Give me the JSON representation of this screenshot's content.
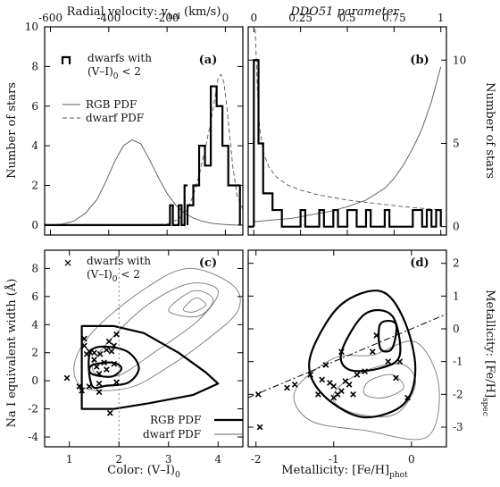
{
  "chart_data": [
    {
      "panel": "(a)",
      "type": "line",
      "xlabel_top": "Radial velocity: v",
      "xlabel_top_sub": "hel",
      "xlabel_top_unit": " (km/s)",
      "ylabel": "Number of stars",
      "xlim": [
        -620,
        60
      ],
      "ylim": [
        -0.5,
        10
      ],
      "xticks": [
        -600,
        -400,
        -200,
        0
      ],
      "yticks": [
        0,
        2,
        4,
        6,
        8,
        10
      ],
      "legend": {
        "hist_label_1": "dwarfs with",
        "hist_label_2": "(V–I)",
        "hist_label_2_sub": "0",
        "hist_label_2_tail": " < 2",
        "rgb_label": "RGB PDF",
        "dwarf_label": "dwarf PDF"
      },
      "histogram": {
        "edges": [
          -130,
          -110,
          -90,
          -70,
          -50,
          -30,
          -10,
          10,
          30,
          50
        ],
        "counts": [
          1,
          2,
          4,
          3,
          7,
          6,
          4,
          2,
          2
        ]
      },
      "histogram_tail": {
        "x": [
          -200,
          -190,
          -190,
          -180,
          -180,
          -160,
          -160,
          -150,
          -150,
          -140,
          -140,
          -130
        ],
        "y": [
          0,
          0,
          1,
          1,
          0,
          0,
          1,
          1,
          0,
          0,
          2,
          2
        ]
      },
      "rgb_pdf": {
        "x": [
          -620,
          -560,
          -520,
          -480,
          -440,
          -410,
          -380,
          -350,
          -320,
          -290,
          -260,
          -230,
          -200,
          -170,
          -140,
          -110,
          -80,
          -50,
          -20,
          10,
          40,
          60
        ],
        "y": [
          0,
          0.05,
          0.2,
          0.6,
          1.3,
          2.2,
          3.2,
          4.0,
          4.3,
          4.1,
          3.3,
          2.4,
          1.6,
          1.0,
          0.6,
          0.35,
          0.2,
          0.1,
          0.05,
          0.02,
          0,
          0
        ]
      },
      "dwarf_pdf": {
        "x": [
          -620,
          -300,
          -200,
          -160,
          -130,
          -110,
          -90,
          -70,
          -50,
          -35,
          -25,
          -15,
          -5,
          5,
          15,
          25,
          40,
          60
        ],
        "y": [
          0,
          0,
          0.05,
          0.3,
          0.8,
          1.5,
          2.5,
          3.8,
          5.2,
          6.5,
          7.4,
          7.6,
          7.2,
          6.0,
          4.5,
          3.0,
          1.5,
          0.8
        ]
      }
    },
    {
      "panel": "(b)",
      "type": "line",
      "xlabel_top": "DDO51 parameter",
      "ylabel": "Number of stars",
      "xlim": [
        -0.03,
        1.03
      ],
      "ylim": [
        -0.5,
        12
      ],
      "xticks": [
        0,
        0.25,
        0.5,
        0.75,
        1
      ],
      "xticklabels": [
        "0",
        "0.25",
        "0.5",
        "0.75",
        "1"
      ],
      "yticks": [
        0,
        5,
        10
      ],
      "histogram": {
        "edges": [
          0,
          0.025,
          0.05,
          0.075,
          0.1,
          0.125,
          0.15,
          0.175,
          0.2,
          0.225,
          0.25,
          0.275,
          0.3,
          0.325,
          0.35,
          0.375,
          0.4,
          0.425,
          0.45,
          0.475,
          0.5,
          0.525,
          0.55,
          0.575,
          0.6,
          0.625,
          0.65,
          0.675,
          0.7,
          0.725,
          0.75,
          0.775,
          0.8,
          0.825,
          0.85,
          0.875,
          0.9,
          0.925,
          0.95,
          0.975,
          1.0
        ],
        "counts": [
          10,
          5,
          2,
          2,
          1,
          1,
          0,
          0,
          0,
          0,
          1,
          0,
          0,
          0,
          1,
          0,
          0,
          1,
          0,
          0,
          1,
          1,
          0,
          0,
          1,
          0,
          0,
          0,
          1,
          0,
          0,
          0,
          0,
          0,
          1,
          1,
          0,
          1,
          0,
          1
        ]
      },
      "rgb_pdf": {
        "x": [
          0,
          0.1,
          0.2,
          0.3,
          0.4,
          0.5,
          0.6,
          0.7,
          0.75,
          0.8,
          0.85,
          0.9,
          0.95,
          1.0
        ],
        "y": [
          0.3,
          0.4,
          0.5,
          0.7,
          0.9,
          1.2,
          1.6,
          2.3,
          2.9,
          3.7,
          4.7,
          5.9,
          7.5,
          9.6
        ]
      },
      "dwarf_pdf": {
        "x": [
          0,
          0.01,
          0.02,
          0.03,
          0.05,
          0.08,
          0.12,
          0.18,
          0.25,
          0.35,
          0.5,
          0.65,
          0.8,
          1.0
        ],
        "y": [
          14,
          11,
          8,
          6,
          4.5,
          3.6,
          3.0,
          2.5,
          2.2,
          1.9,
          1.6,
          1.4,
          1.2,
          1.0
        ]
      }
    },
    {
      "panel": "(c)",
      "type": "scatter",
      "xlabel": "Color: (V–I)",
      "xlabel_sub": "0",
      "ylabel": "Na I equivalent width (Å)",
      "xlim": [
        0.5,
        4.5
      ],
      "ylim": [
        -4.7,
        9.3
      ],
      "xticks": [
        1,
        2,
        3,
        4
      ],
      "yticks": [
        -4,
        -2,
        0,
        2,
        4,
        6,
        8
      ],
      "legend": {
        "marker_label_1": "dwarfs with",
        "marker_label_2": "(V–I)",
        "marker_label_2_sub": "0",
        "marker_label_2_tail": " < 2",
        "rgb_label": "RGB PDF",
        "dwarf_label": "dwarf PDF"
      },
      "cut_x": 2,
      "points": [
        [
          0.95,
          0.2
        ],
        [
          1.2,
          -0.4
        ],
        [
          1.3,
          3.0
        ],
        [
          1.3,
          2.5
        ],
        [
          1.35,
          1.9
        ],
        [
          1.4,
          2.1
        ],
        [
          1.5,
          2.0
        ],
        [
          1.5,
          1.5
        ],
        [
          1.55,
          1.0
        ],
        [
          1.6,
          0.5
        ],
        [
          1.6,
          -0.2
        ],
        [
          1.62,
          1.9
        ],
        [
          1.7,
          1.3
        ],
        [
          1.75,
          0.8
        ],
        [
          1.75,
          2.2
        ],
        [
          1.8,
          2.8
        ],
        [
          1.82,
          -2.3
        ],
        [
          1.85,
          2.1
        ],
        [
          1.9,
          2.5
        ],
        [
          1.9,
          1.2
        ],
        [
          1.95,
          -0.1
        ],
        [
          1.95,
          3.3
        ],
        [
          1.4,
          -0.4
        ],
        [
          1.25,
          -0.7
        ],
        [
          1.6,
          -0.8
        ]
      ],
      "rgb_contour_outer": [
        [
          1.25,
          3.9
        ],
        [
          1.9,
          3.9
        ],
        [
          2.5,
          3.4
        ],
        [
          3.2,
          2.0
        ],
        [
          3.75,
          0.6
        ],
        [
          4.0,
          -0.2
        ],
        [
          3.5,
          -1.0
        ],
        [
          2.6,
          -1.6
        ],
        [
          1.9,
          -2.0
        ],
        [
          1.25,
          -2.0
        ]
      ],
      "rgb_contour_mid": [
        [
          1.45,
          2.2
        ],
        [
          2.1,
          2.2
        ],
        [
          2.4,
          1.0
        ],
        [
          2.2,
          -0.1
        ],
        [
          1.75,
          -0.35
        ],
        [
          1.45,
          -0.3
        ]
      ],
      "rgb_contour_inner": [
        [
          1.45,
          1.1
        ],
        [
          1.85,
          1.3
        ],
        [
          2.05,
          0.9
        ],
        [
          1.85,
          0.3
        ],
        [
          1.45,
          0.5
        ]
      ],
      "dwarf_contour_outer": [
        [
          1.1,
          1.2
        ],
        [
          1.5,
          3.6
        ],
        [
          2.5,
          6.5
        ],
        [
          3.4,
          8.0
        ],
        [
          4.3,
          6.8
        ],
        [
          4.4,
          5.0
        ],
        [
          3.8,
          3.0
        ],
        [
          3.0,
          1.0
        ],
        [
          2.2,
          -0.5
        ],
        [
          1.3,
          -0.5
        ]
      ],
      "dwarf_contour_mid": [
        [
          1.6,
          2.0
        ],
        [
          2.5,
          5.2
        ],
        [
          3.4,
          6.9
        ],
        [
          4.0,
          6.4
        ],
        [
          3.6,
          4.3
        ],
        [
          2.7,
          2.0
        ],
        [
          2.0,
          0.4
        ],
        [
          1.5,
          0.6
        ]
      ],
      "dwarf_contour_inner": [
        [
          3.0,
          5.0
        ],
        [
          3.5,
          6.4
        ],
        [
          3.9,
          5.8
        ],
        [
          3.6,
          4.6
        ]
      ],
      "dwarf_contour_core": [
        [
          3.3,
          5.1
        ],
        [
          3.55,
          5.9
        ],
        [
          3.75,
          5.4
        ],
        [
          3.5,
          4.9
        ]
      ]
    },
    {
      "panel": "(d)",
      "type": "scatter",
      "xlabel": "Metallicity: [Fe/H]",
      "xlabel_sub": "phot",
      "ylabel": "Metallicity: [Fe/H]",
      "ylabel_sub": "spec",
      "xlim": [
        -2.1,
        0.45
      ],
      "ylim": [
        -3.6,
        2.4
      ],
      "xticks": [
        -2,
        -1,
        0
      ],
      "yticks": [
        -3,
        -2,
        -1,
        0,
        1,
        2
      ],
      "points": [
        [
          -1.95,
          -3.0
        ],
        [
          -1.97,
          -2.0
        ],
        [
          -1.6,
          -1.8
        ],
        [
          -1.5,
          -1.7
        ],
        [
          -1.3,
          -1.4
        ],
        [
          -1.2,
          -2.0
        ],
        [
          -1.15,
          -1.55
        ],
        [
          -1.1,
          -1.1
        ],
        [
          -1.05,
          -1.65
        ],
        [
          -1.0,
          -2.1
        ],
        [
          -1.0,
          -1.75
        ],
        [
          -0.95,
          -2.0
        ],
        [
          -0.9,
          -1.9
        ],
        [
          -0.85,
          -1.6
        ],
        [
          -0.8,
          -1.7
        ],
        [
          -0.75,
          -2.0
        ],
        [
          -0.7,
          -1.4
        ],
        [
          -0.6,
          -1.3
        ],
        [
          -0.5,
          -0.7
        ],
        [
          -0.45,
          -0.2
        ],
        [
          -0.3,
          -1.0
        ],
        [
          -0.2,
          -1.5
        ],
        [
          -0.15,
          -1.0
        ],
        [
          -0.05,
          -2.1
        ],
        [
          -0.9,
          -0.7
        ]
      ],
      "one_to_one": {
        "x": [
          -2.1,
          0.45
        ],
        "y": [
          -2.1,
          0.45
        ]
      },
      "rgb_contour_outer": [
        [
          -1.25,
          -0.5
        ],
        [
          -0.9,
          0.75
        ],
        [
          -0.4,
          1.15
        ],
        [
          -0.1,
          0.3
        ],
        [
          0.05,
          -1.2
        ],
        [
          -0.1,
          -2.3
        ],
        [
          -0.6,
          -2.7
        ],
        [
          -1.05,
          -2.2
        ],
        [
          -1.3,
          -1.4
        ]
      ],
      "rgb_contour_mid": [
        [
          -0.9,
          -0.7
        ],
        [
          -0.6,
          0.45
        ],
        [
          -0.25,
          0.4
        ],
        [
          -0.15,
          -0.8
        ],
        [
          -0.4,
          -1.2
        ],
        [
          -0.8,
          -1.25
        ]
      ],
      "rgb_contour_inner": [
        [
          -0.4,
          -0.6
        ],
        [
          -0.4,
          0.15
        ],
        [
          -0.2,
          0.15
        ],
        [
          -0.25,
          -0.6
        ]
      ],
      "dwarf_contour_outer": [
        [
          -1.5,
          -1.9
        ],
        [
          -1.0,
          -0.9
        ],
        [
          -0.5,
          -0.8
        ],
        [
          0.05,
          -0.4
        ],
        [
          0.35,
          -1.7
        ],
        [
          0.2,
          -3.3
        ],
        [
          -0.6,
          -3.1
        ],
        [
          -1.3,
          -2.8
        ]
      ],
      "dwarf_contour_mid": [
        [
          -0.9,
          -1.7
        ],
        [
          -0.5,
          -1.2
        ],
        [
          -0.1,
          -1.1
        ],
        [
          0.05,
          -1.7
        ],
        [
          -0.2,
          -2.6
        ],
        [
          -0.7,
          -2.6
        ],
        [
          -1.0,
          -2.2
        ]
      ],
      "dwarf_contour_inner": [
        [
          -0.55,
          -1.6
        ],
        [
          -0.25,
          -1.4
        ],
        [
          -0.1,
          -1.8
        ],
        [
          -0.35,
          -2.1
        ],
        [
          -0.6,
          -2.0
        ]
      ]
    }
  ]
}
